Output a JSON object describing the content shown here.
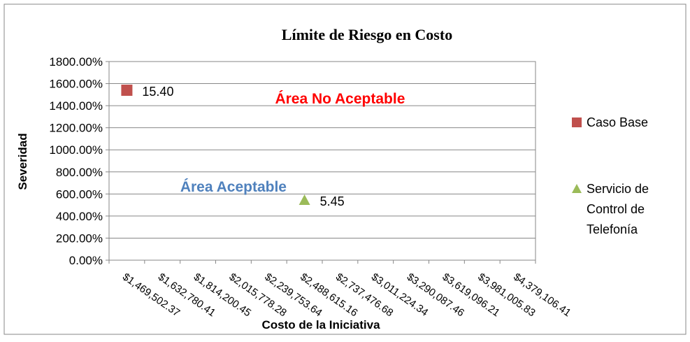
{
  "chart_data": {
    "type": "scatter",
    "title": "Límite de Riesgo en Costo",
    "xlabel": "Costo de la Iniciativa",
    "ylabel": "Severidad",
    "ylim": [
      0,
      1800
    ],
    "yticks": [
      "0.00%",
      "200.00%",
      "400.00%",
      "600.00%",
      "800.00%",
      "1000.00%",
      "1200.00%",
      "1400.00%",
      "1600.00%",
      "1800.00%"
    ],
    "categories": [
      "$1,469,502.37",
      "$1,632,780.41",
      "$1,814,200.45",
      "$2,015,778.28",
      "$2,239,753.64",
      "$2,488,615.16",
      "$2,737,476.68",
      "$3,011,224.34",
      "$3,290,087.46",
      "$3,619,096.21",
      "$3,981,005.83",
      "$4,379,106.41"
    ],
    "grid": true,
    "legend_position": "right",
    "series": [
      {
        "name": "Caso Base",
        "marker": "square",
        "color": "#c0504d",
        "points": [
          {
            "x": "$1,469,502.37",
            "y": 1540,
            "label": "15.40"
          }
        ]
      },
      {
        "name": "Servicio de Control de Telefonía",
        "legend_lines": [
          "Servicio de",
          "Control de",
          "Telefonía"
        ],
        "marker": "triangle",
        "color": "#9bbb59",
        "points": [
          {
            "x": "$2,488,615.16",
            "y": 545,
            "label": "5.45"
          }
        ]
      }
    ],
    "annotations": [
      {
        "text": "Área No Aceptable",
        "color": "#ff0000",
        "x": "$2,737,476.68",
        "y": 1420
      },
      {
        "text": "Área Aceptable",
        "color": "#4f81bd",
        "x": "$2,015,778.28",
        "y": 620
      }
    ]
  }
}
